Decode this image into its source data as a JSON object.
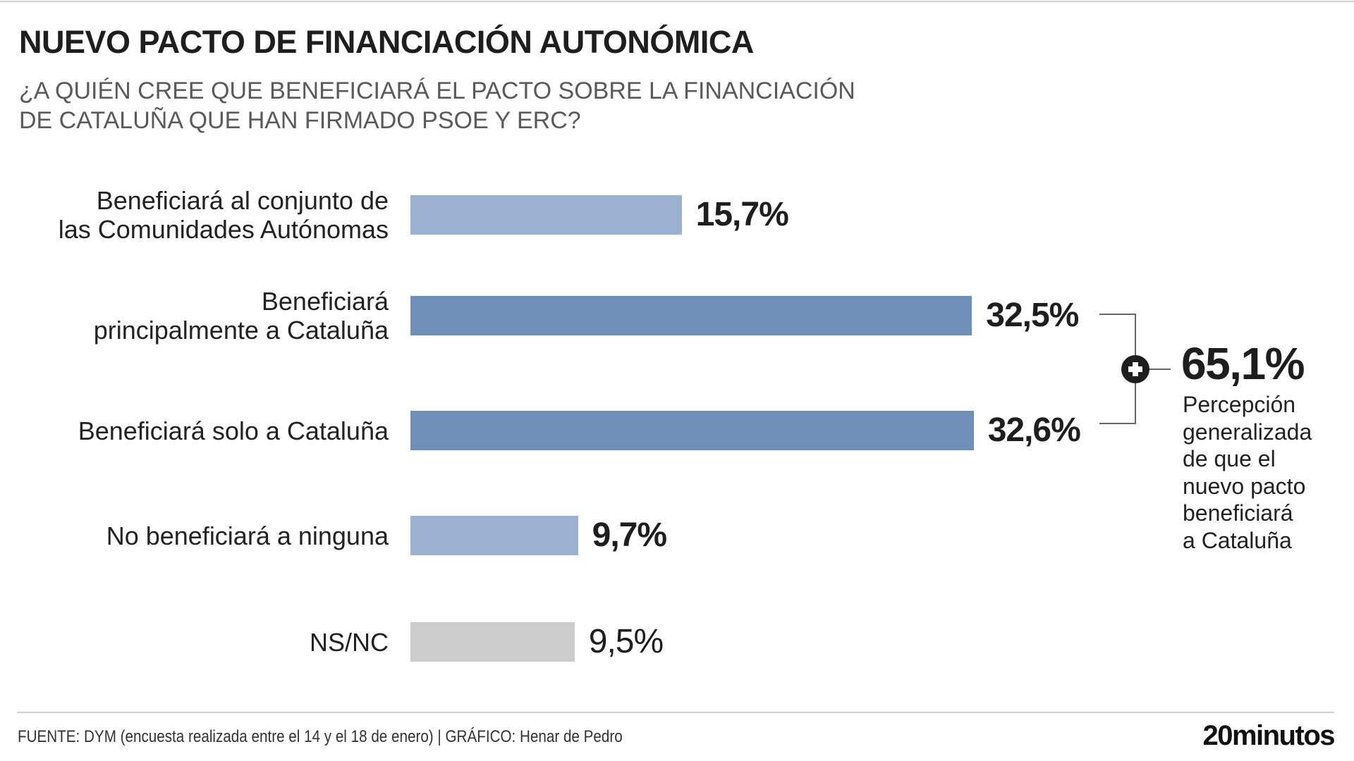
{
  "header": {
    "title": "NUEVO PACTO DE FINANCIACIÓN AUTONÓMICA",
    "subtitle_line1": "¿A QUIÉN CREE QUE BENEFICIARÁ EL PACTO SOBRE LA FINANCIACIÓN",
    "subtitle_line2": "DE CATALUÑA QUE HAN FIRMADO PSOE Y ERC?"
  },
  "chart_data": {
    "type": "bar",
    "orientation": "horizontal",
    "title": "NUEVO PACTO DE FINANCIACIÓN AUTONÓMICA",
    "categories": [
      [
        "Beneficiará al conjunto de",
        "las Comunidades Autónomas"
      ],
      [
        "Beneficiará",
        "principalmente a Cataluña"
      ],
      [
        "Beneficiará solo a Cataluña"
      ],
      [
        "No beneficiará a ninguna"
      ],
      [
        "NS/NC"
      ]
    ],
    "values": [
      15.7,
      32.5,
      32.6,
      9.7,
      9.5
    ],
    "value_labels": [
      "15,7%",
      "32,5%",
      "32,6%",
      "9,7%",
      "9,5%"
    ],
    "colors": [
      "#9bb1d0",
      "#6d8fb8",
      "#6d8fb8",
      "#9bb1d0",
      "#cccccc"
    ],
    "xlim": [
      0,
      40
    ],
    "grid": false,
    "annotation": {
      "value": "65,1%",
      "description": [
        "Percepción",
        "generalizada",
        "de que el",
        "nuevo pacto",
        "beneficiará",
        "a Cataluña"
      ],
      "icon": "plus-circle-icon"
    }
  },
  "footer": {
    "source": "FUENTE: DYM (encuesta realizada entre el 14 y el 18 de enero)  |  GRÁFICO: Henar de Pedro",
    "logo": "20minutos"
  }
}
